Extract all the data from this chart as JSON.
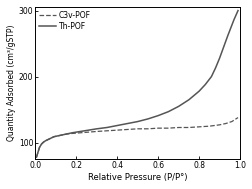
{
  "title": "",
  "xlabel": "Relative Pressure (P/P°)",
  "ylabel": "Quantity Adsorbed (cm³/gSTP)",
  "xlim": [
    0.0,
    1.0
  ],
  "ylim": [
    75,
    305
  ],
  "yticks": [
    100,
    200,
    300
  ],
  "xticks": [
    0.0,
    0.2,
    0.4,
    0.6,
    0.8,
    1.0
  ],
  "legend_labels": [
    "C3v-POF",
    "Th-POF"
  ],
  "line_color": "#555555",
  "background_color": "#ffffff",
  "c3v_x": [
    0.005,
    0.01,
    0.015,
    0.02,
    0.03,
    0.04,
    0.05,
    0.07,
    0.09,
    0.12,
    0.15,
    0.18,
    0.22,
    0.26,
    0.3,
    0.35,
    0.4,
    0.45,
    0.5,
    0.55,
    0.6,
    0.65,
    0.7,
    0.75,
    0.8,
    0.85,
    0.9,
    0.93,
    0.96,
    0.99
  ],
  "c3v_y": [
    78,
    83,
    88,
    93,
    98,
    101,
    103,
    106,
    109,
    111,
    113,
    114,
    115,
    116,
    117,
    118,
    119,
    120,
    121,
    121,
    122,
    122,
    123,
    123,
    124,
    125,
    127,
    129,
    132,
    138
  ],
  "th_x": [
    0.005,
    0.01,
    0.015,
    0.02,
    0.03,
    0.04,
    0.05,
    0.07,
    0.09,
    0.12,
    0.15,
    0.18,
    0.22,
    0.26,
    0.3,
    0.35,
    0.4,
    0.45,
    0.5,
    0.55,
    0.6,
    0.65,
    0.7,
    0.75,
    0.8,
    0.83,
    0.86,
    0.88,
    0.9,
    0.92,
    0.94,
    0.96,
    0.97,
    0.98,
    0.99
  ],
  "th_y": [
    78,
    83,
    88,
    93,
    98,
    101,
    103,
    106,
    109,
    111,
    113,
    115,
    117,
    119,
    121,
    123,
    126,
    129,
    132,
    136,
    141,
    147,
    155,
    165,
    178,
    188,
    200,
    213,
    228,
    245,
    262,
    278,
    286,
    293,
    300
  ]
}
